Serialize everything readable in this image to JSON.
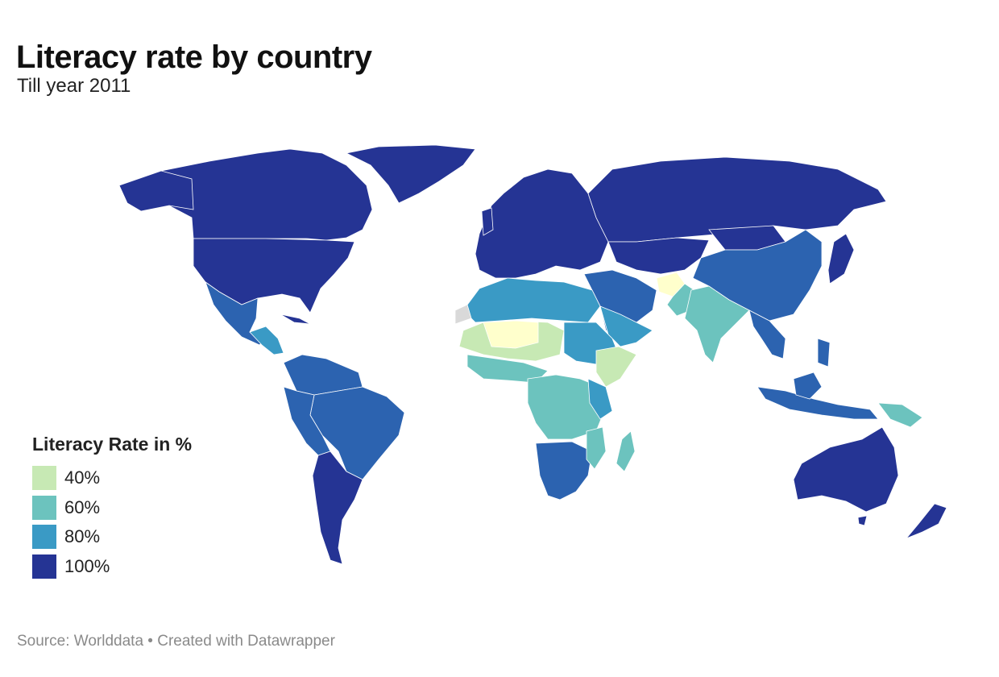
{
  "header": {
    "title": "Literacy rate by country",
    "subtitle": "Till year 2011"
  },
  "legend": {
    "title": "Literacy Rate in %",
    "items": [
      {
        "label": "40%",
        "color": "#c7e9b4"
      },
      {
        "label": "60%",
        "color": "#6cc3be"
      },
      {
        "label": "80%",
        "color": "#3a9ac5"
      },
      {
        "label": "100%",
        "color": "#253494"
      }
    ]
  },
  "colors": {
    "lowest": "#ffffcc",
    "low": "#c7e9b4",
    "mid": "#6cc3be",
    "high": "#3a9ac5",
    "very_high": "#2c63b0",
    "highest": "#253494",
    "no_data": "#d9d9d9"
  },
  "footer": {
    "source": "Source: Worlddata • Created with Datawrapper"
  }
}
